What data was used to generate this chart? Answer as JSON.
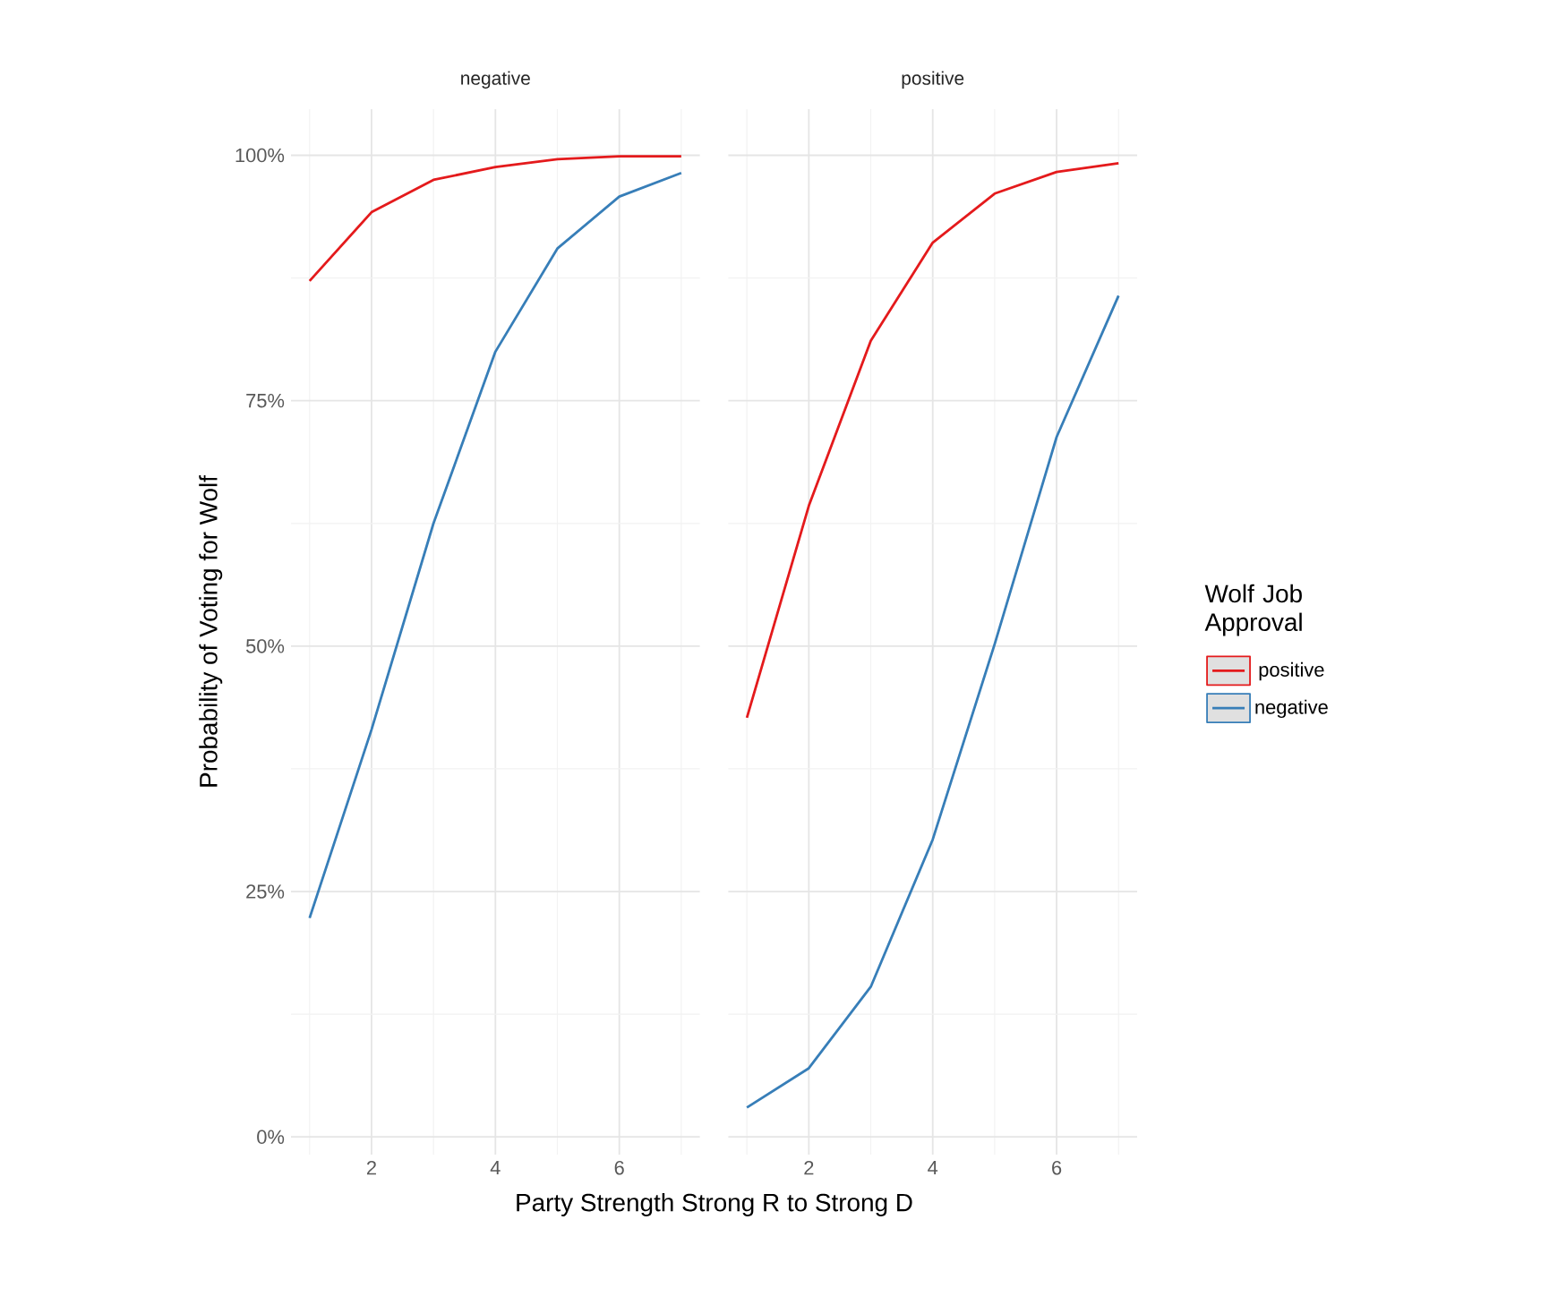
{
  "chart_data": [
    {
      "type": "line",
      "title": "negative",
      "ylabel": "Probability of Voting for Wolf",
      "xlabel": "Party Strength Strong R to Strong D",
      "x": [
        1,
        2,
        3,
        4,
        5,
        6,
        7
      ],
      "series": [
        {
          "color": "#e41a1c",
          "values": [
            87.2,
            94.2,
            97.5,
            98.8,
            99.6,
            99.9,
            99.9
          ]
        },
        {
          "color": "#377eb8",
          "values": [
            22.3,
            41.5,
            62.5,
            80.0,
            90.5,
            95.8,
            98.2
          ]
        }
      ],
      "xlim": [
        0.7,
        7.3
      ],
      "ylim": [
        -1.8,
        104.7
      ],
      "xticks": [
        2,
        4,
        6
      ],
      "yticks": [
        {
          "value": 0,
          "label": "0%"
        },
        {
          "value": 25,
          "label": "25%"
        },
        {
          "value": 50,
          "label": "50%"
        },
        {
          "value": 75,
          "label": "75%"
        },
        {
          "value": 100,
          "label": "100%"
        }
      ],
      "grid": true
    },
    {
      "type": "line",
      "title": "positive",
      "legend_title": "Wolf Job Approval",
      "x": [
        1,
        2,
        3,
        4,
        5,
        6,
        7
      ],
      "series": [
        {
          "name": "positive",
          "color": "#e41a1c",
          "values": [
            42.7,
            64.3,
            81.1,
            91.1,
            96.1,
            98.3,
            99.2
          ]
        },
        {
          "name": "negative",
          "color": "#377eb8",
          "values": [
            3.0,
            7.0,
            15.3,
            30.3,
            50.2,
            71.3,
            85.7
          ]
        }
      ],
      "xlim": [
        0.7,
        7.3
      ],
      "ylim": [
        -1.8,
        104.7
      ],
      "xticks": [
        2,
        4,
        6
      ],
      "yticks": [
        {
          "value": 0,
          "label": null
        },
        {
          "value": 25,
          "label": null
        },
        {
          "value": 50,
          "label": null
        },
        {
          "value": 75,
          "label": null
        },
        {
          "value": 100,
          "label": null
        }
      ],
      "grid": true,
      "legend": "right",
      "tick_labels": "x"
    }
  ]
}
